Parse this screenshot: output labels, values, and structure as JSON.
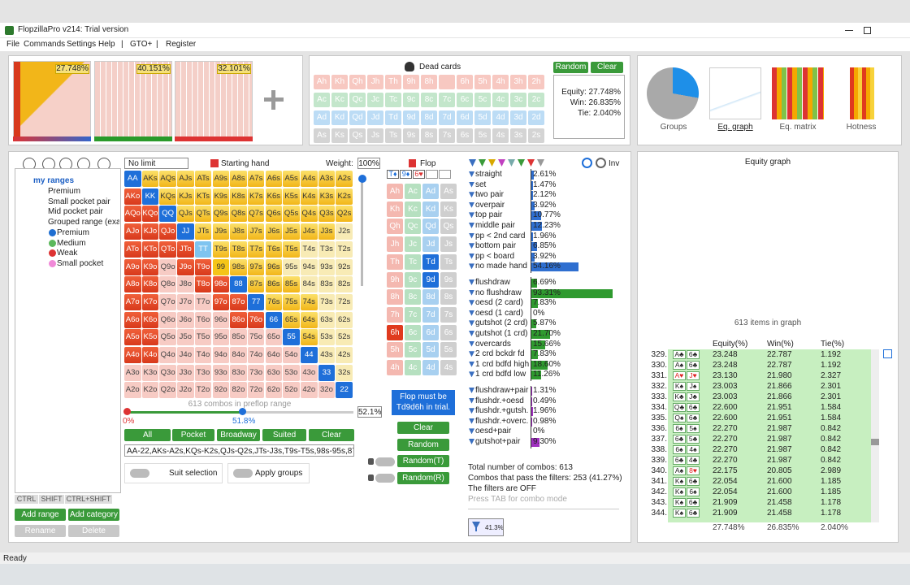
{
  "window": {
    "title": "FlopzillaPro v214: Trial version"
  },
  "menu": [
    "File",
    "Commands",
    "Settings",
    "Help",
    "|",
    "GTO+",
    "|",
    "Register"
  ],
  "range_tabs": [
    "27.748%",
    "40.151%",
    "32.101%"
  ],
  "dead_cards": {
    "title": "Dead cards",
    "random": "Random",
    "clear": "Clear",
    "rows": [
      [
        "Ah",
        "Kh",
        "Qh",
        "Jh",
        "Th",
        "9h",
        "8h",
        null,
        "6h",
        "5h",
        "4h",
        "3h",
        "2h"
      ],
      [
        "Ac",
        "Kc",
        "Qc",
        "Jc",
        "Tc",
        "9c",
        "8c",
        "7c",
        "6c",
        "5c",
        "4c",
        "3c",
        "2c"
      ],
      [
        "Ad",
        "Kd",
        "Qd",
        "Jd",
        "Td",
        "9d",
        "8d",
        "7d",
        "6d",
        "5d",
        "4d",
        "3d",
        "2d"
      ],
      [
        "As",
        "Ks",
        "Qs",
        "Js",
        "Ts",
        "9s",
        "8s",
        "7s",
        "6s",
        "5s",
        "4s",
        "3s",
        "2s"
      ]
    ]
  },
  "equity_box": {
    "equity": "Equity: 27.748%",
    "win": "Win: 26.835%",
    "tie": "Tie: 2.040%"
  },
  "views": [
    "Groups",
    "Eq. graph",
    "Eq. matrix",
    "Hotness"
  ],
  "tree": {
    "root": "my ranges",
    "items": [
      "Premium",
      "Small pocket pair",
      "Mid pocket pair",
      "Grouped range (exa"
    ],
    "groups": [
      "Premium",
      "Medium",
      "Weak",
      "Small pocket"
    ],
    "keys": [
      "CTRL",
      "SHIFT",
      "CTRL+SHIFT"
    ],
    "buttons": [
      "Add range",
      "Add category",
      "Rename",
      "Delete"
    ]
  },
  "hand_panel": {
    "limit": "No limit",
    "title": "Starting hand",
    "weight_label": "Weight:",
    "weight": "100%",
    "grid": [
      [
        "AA",
        "AKs",
        "AQs",
        "AJs",
        "ATs",
        "A9s",
        "A8s",
        "A7s",
        "A6s",
        "A5s",
        "A4s",
        "A3s",
        "A2s"
      ],
      [
        "AKo",
        "KK",
        "KQs",
        "KJs",
        "KTs",
        "K9s",
        "K8s",
        "K7s",
        "K6s",
        "K5s",
        "K4s",
        "K3s",
        "K2s"
      ],
      [
        "AQo",
        "KQo",
        "QQ",
        "QJs",
        "QTs",
        "Q9s",
        "Q8s",
        "Q7s",
        "Q6s",
        "Q5s",
        "Q4s",
        "Q3s",
        "Q2s"
      ],
      [
        "AJo",
        "KJo",
        "QJo",
        "JJ",
        "JTs",
        "J9s",
        "J8s",
        "J7s",
        "J6s",
        "J5s",
        "J4s",
        "J3s",
        "J2s"
      ],
      [
        "ATo",
        "KTo",
        "QTo",
        "JTo",
        "TT",
        "T9s",
        "T8s",
        "T7s",
        "T6s",
        "T5s",
        "T4s",
        "T3s",
        "T2s"
      ],
      [
        "A9o",
        "K9o",
        "Q9o",
        "J9o",
        "T9o",
        "99",
        "98s",
        "97s",
        "96s",
        "95s",
        "94s",
        "93s",
        "92s"
      ],
      [
        "A8o",
        "K8o",
        "Q8o",
        "J8o",
        "T8o",
        "98o",
        "88",
        "87s",
        "86s",
        "85s",
        "84s",
        "83s",
        "82s"
      ],
      [
        "A7o",
        "K7o",
        "Q7o",
        "J7o",
        "T7o",
        "97o",
        "87o",
        "77",
        "76s",
        "75s",
        "74s",
        "73s",
        "72s"
      ],
      [
        "A6o",
        "K6o",
        "Q6o",
        "J6o",
        "T6o",
        "96o",
        "86o",
        "76o",
        "66",
        "65s",
        "64s",
        "63s",
        "62s"
      ],
      [
        "A5o",
        "K5o",
        "Q5o",
        "J5o",
        "T5o",
        "95o",
        "85o",
        "75o",
        "65o",
        "55",
        "54s",
        "53s",
        "52s"
      ],
      [
        "A4o",
        "K4o",
        "Q4o",
        "J4o",
        "T4o",
        "94o",
        "84o",
        "74o",
        "64o",
        "54o",
        "44",
        "43s",
        "42s"
      ],
      [
        "A3o",
        "K3o",
        "Q3o",
        "J3o",
        "T3o",
        "93o",
        "83o",
        "73o",
        "63o",
        "53o",
        "43o",
        "33",
        "32s"
      ],
      [
        "A2o",
        "K2o",
        "Q2o",
        "J2o",
        "T2o",
        "92o",
        "82o",
        "72o",
        "62o",
        "52o",
        "42o",
        "32o",
        "22"
      ]
    ],
    "combos": "613 combos in preflop range",
    "slider_min": "0%",
    "slider_mid": "51.8%",
    "slider_value": "52.1%",
    "buttons": [
      "All",
      "Pocket",
      "Broadway",
      "Suited",
      "Clear"
    ],
    "range_text": "AA-22,AKs-A2s,KQs-K2s,QJs-Q2s,JTs-J3s,T9s-T5s,98s-95s,87s-85s,",
    "suit_selection": "Suit selection",
    "apply_groups": "Apply groups"
  },
  "flop_panel": {
    "title": "Flop",
    "board": [
      "T♦",
      "9♦",
      "6♥"
    ],
    "cards": [
      [
        "Ah",
        "Ac",
        "Ad",
        "As"
      ],
      [
        "Kh",
        "Kc",
        "Kd",
        "Ks"
      ],
      [
        "Qh",
        "Qc",
        "Qd",
        "Qs"
      ],
      [
        "Jh",
        "Jc",
        "Jd",
        "Js"
      ],
      [
        "Th",
        "Tc",
        "Td",
        "Ts"
      ],
      [
        "9h",
        "9c",
        "9d",
        "9s"
      ],
      [
        "8h",
        "8c",
        "8d",
        "8s"
      ],
      [
        "7h",
        "7c",
        "7d",
        "7s"
      ],
      [
        "6h",
        "6c",
        "6d",
        "6s"
      ],
      [
        "5h",
        "5c",
        "5d",
        "5s"
      ],
      [
        "4h",
        "4c",
        "4d",
        "4s"
      ]
    ],
    "tooltip": "Flop must be Td9d6h in trial.",
    "buttons": [
      "Clear",
      "Random",
      "Random(T)",
      "Random(R)"
    ]
  },
  "stats": {
    "inv": "Inv",
    "made": [
      {
        "name": "straight",
        "value": 2.61,
        "value_label": "2.61%"
      },
      {
        "name": "set",
        "value": 1.47,
        "value_label": "1.47%"
      },
      {
        "name": "two pair",
        "value": 2.12,
        "value_label": "2.12%"
      },
      {
        "name": "overpair",
        "value": 3.92,
        "value_label": "3.92%"
      },
      {
        "name": "top pair",
        "value": 10.77,
        "value_label": "10.77%"
      },
      {
        "name": "middle pair",
        "value": 12.23,
        "value_label": "12.23%"
      },
      {
        "name": "pp < 2nd card",
        "value": 1.96,
        "value_label": "1.96%"
      },
      {
        "name": "bottom pair",
        "value": 6.85,
        "value_label": "6.85%"
      },
      {
        "name": "pp < board",
        "value": 3.92,
        "value_label": "3.92%"
      },
      {
        "name": "no made hand",
        "value": 54.16,
        "value_label": "54.16%"
      }
    ],
    "draws": [
      {
        "name": "flushdraw",
        "value": 6.69,
        "value_label": "6.69%"
      },
      {
        "name": "no flushdraw",
        "value": 93.31,
        "value_label": "93.31%"
      },
      {
        "name": "oesd (2 card)",
        "value": 7.83,
        "value_label": "7.83%"
      },
      {
        "name": "oesd (1 card)",
        "value": 0,
        "value_label": "0%"
      },
      {
        "name": "gutshot (2 crd)",
        "value": 5.87,
        "value_label": "5.87%"
      },
      {
        "name": "gutshot (1 crd)",
        "value": 21.7,
        "value_label": "21.70%"
      },
      {
        "name": "overcards",
        "value": 15.66,
        "value_label": "15.66%"
      },
      {
        "name": "2 crd bckdr fd",
        "value": 7.83,
        "value_label": "7.83%"
      },
      {
        "name": "1 crd bdfd high",
        "value": 18.6,
        "value_label": "18.60%"
      },
      {
        "name": "1 crd bdfd low",
        "value": 11.26,
        "value_label": "11.26%"
      }
    ],
    "combos": [
      {
        "name": "flushdraw+pair",
        "value": 1.31,
        "value_label": "1.31%"
      },
      {
        "name": "flushdr.+oesd",
        "value": 0.49,
        "value_label": "0.49%"
      },
      {
        "name": "flushdr.+gutsh.",
        "value": 1.96,
        "value_label": "1.96%"
      },
      {
        "name": "flushdr.+overc.",
        "value": 0.98,
        "value_label": "0.98%"
      },
      {
        "name": "oesd+pair",
        "value": 0,
        "value_label": "0%"
      },
      {
        "name": "gutshot+pair",
        "value": 9.3,
        "value_label": "9.30%"
      }
    ],
    "summary": [
      "Total number of combos: 613",
      "Combos that pass the filters: 253 (41.27%)",
      "The filters are OFF",
      "Press TAB for combo mode"
    ],
    "badge": "41.3%"
  },
  "graph": {
    "title": "Equity graph",
    "caption": "613 items in graph"
  },
  "equity_table": {
    "headers": [
      "Equity(%)",
      "Win(%)",
      "Tie(%)"
    ],
    "rows": [
      {
        "rank": "329.",
        "cards": [
          "A♣",
          "6♣"
        ],
        "equity": "23.248",
        "win": "22.787",
        "tie": "1.192"
      },
      {
        "rank": "330.",
        "cards": [
          "A♠",
          "6♣"
        ],
        "equity": "23.248",
        "win": "22.787",
        "tie": "1.192"
      },
      {
        "rank": "331.",
        "cards": [
          "A♥",
          "J♥"
        ],
        "equity": "23.130",
        "win": "21.980",
        "tie": "2.327"
      },
      {
        "rank": "332.",
        "cards": [
          "K♠",
          "J♠"
        ],
        "equity": "23.003",
        "win": "21.866",
        "tie": "2.301"
      },
      {
        "rank": "333.",
        "cards": [
          "K♣",
          "J♣"
        ],
        "equity": "23.003",
        "win": "21.866",
        "tie": "2.301"
      },
      {
        "rank": "334.",
        "cards": [
          "Q♣",
          "6♣"
        ],
        "equity": "22.600",
        "win": "21.951",
        "tie": "1.584"
      },
      {
        "rank": "335.",
        "cards": [
          "Q♠",
          "6♣"
        ],
        "equity": "22.600",
        "win": "21.951",
        "tie": "1.584"
      },
      {
        "rank": "336.",
        "cards": [
          "6♠",
          "5♠"
        ],
        "equity": "22.270",
        "win": "21.987",
        "tie": "0.842"
      },
      {
        "rank": "337.",
        "cards": [
          "6♣",
          "5♣"
        ],
        "equity": "22.270",
        "win": "21.987",
        "tie": "0.842"
      },
      {
        "rank": "338.",
        "cards": [
          "6♠",
          "4♠"
        ],
        "equity": "22.270",
        "win": "21.987",
        "tie": "0.842"
      },
      {
        "rank": "339.",
        "cards": [
          "6♣",
          "4♣"
        ],
        "equity": "22.270",
        "win": "21.987",
        "tie": "0.842"
      },
      {
        "rank": "340.",
        "cards": [
          "A♠",
          "8♥"
        ],
        "equity": "22.175",
        "win": "20.805",
        "tie": "2.989"
      },
      {
        "rank": "341.",
        "cards": [
          "K♠",
          "6♣"
        ],
        "equity": "22.054",
        "win": "21.600",
        "tie": "1.185"
      },
      {
        "rank": "342.",
        "cards": [
          "K♠",
          "6♠"
        ],
        "equity": "22.054",
        "win": "21.600",
        "tie": "1.185"
      },
      {
        "rank": "343.",
        "cards": [
          "K♠",
          "6♣"
        ],
        "equity": "21.909",
        "win": "21.458",
        "tie": "1.178"
      },
      {
        "rank": "344.",
        "cards": [
          "K♠",
          "6♣"
        ],
        "equity": "21.909",
        "win": "21.458",
        "tie": "1.178"
      }
    ],
    "totals": [
      "27.748%",
      "26.835%",
      "2.040%"
    ]
  },
  "status": "Ready"
}
